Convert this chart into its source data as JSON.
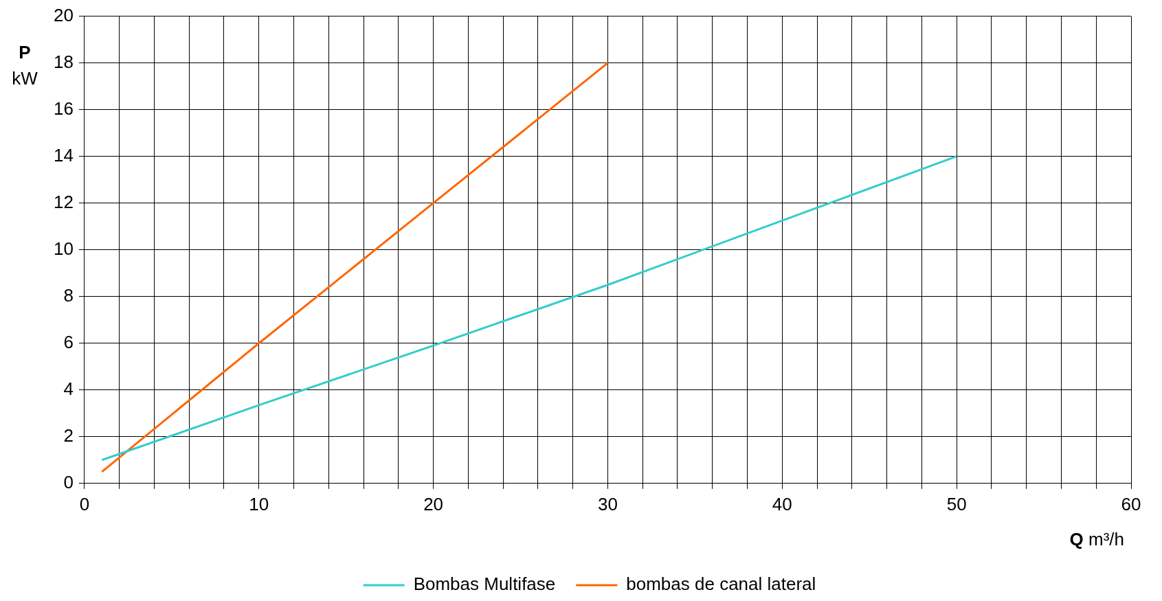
{
  "chart_data": {
    "type": "line",
    "xlabel": "Q m³/h",
    "ylabel": "P kW",
    "xlim": [
      0,
      60
    ],
    "xticks": [
      0,
      {
        "value": 2,
        "label": null
      },
      {
        "value": 4,
        "label": null
      },
      {
        "value": 6,
        "label": null
      },
      {
        "value": 8,
        "label": null
      },
      10,
      {
        "value": 12,
        "label": null
      },
      {
        "value": 14,
        "label": null
      },
      {
        "value": 16,
        "label": null
      },
      {
        "value": 18,
        "label": null
      },
      20,
      {
        "value": 22,
        "label": null
      },
      {
        "value": 24,
        "label": null
      },
      {
        "value": 26,
        "label": null
      },
      {
        "value": 28,
        "label": null
      },
      30,
      {
        "value": 32,
        "label": null
      },
      {
        "value": 34,
        "label": null
      },
      {
        "value": 36,
        "label": null
      },
      {
        "value": 38,
        "label": null
      },
      40,
      {
        "value": 42,
        "label": null
      },
      {
        "value": 44,
        "label": null
      },
      {
        "value": 46,
        "label": null
      },
      {
        "value": 48,
        "label": null
      },
      50,
      {
        "value": 52,
        "label": null
      },
      {
        "value": 54,
        "label": null
      },
      {
        "value": 56,
        "label": null
      },
      {
        "value": 58,
        "label": null
      },
      60
    ],
    "ylim": [
      0,
      20
    ],
    "yticks": [
      0,
      2,
      4,
      6,
      8,
      10,
      12,
      14,
      16,
      18,
      20
    ],
    "grid": true,
    "legend": "bottom",
    "marker": "none",
    "line_style": "solid",
    "series": [
      {
        "name": "Bombas Multifase",
        "color": "#33cccc",
        "x": [
          1,
          10,
          20,
          30,
          40,
          50
        ],
        "values": [
          1.0,
          3.35,
          5.9,
          8.5,
          11.25,
          14
        ]
      },
      {
        "name": "bombas de canal lateral",
        "color": "#ff6600",
        "x": [
          1,
          10,
          20,
          30
        ],
        "values": [
          0.5,
          6,
          12,
          18
        ]
      }
    ]
  }
}
